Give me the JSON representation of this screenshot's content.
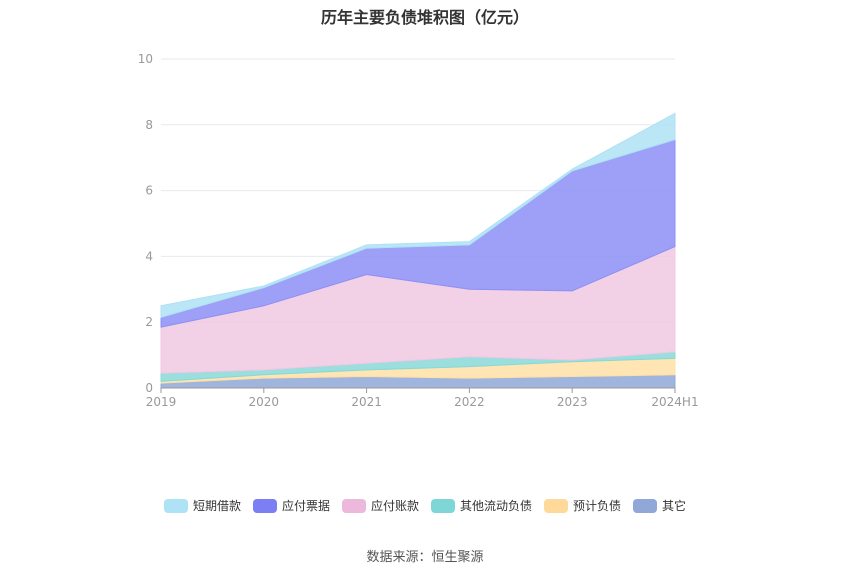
{
  "chart_data": {
    "type": "area",
    "stacked": true,
    "title": "历年主要负债堆积图（亿元）",
    "categories": [
      "2019",
      "2020",
      "2021",
      "2022",
      "2023",
      "2024H1"
    ],
    "ylim": [
      0,
      10
    ],
    "yticks": [
      "0",
      "2",
      "4",
      "6",
      "8",
      "10"
    ],
    "series": [
      {
        "name": "其它",
        "color": "#8fa8d8",
        "values": [
          0.15,
          0.3,
          0.35,
          0.3,
          0.35,
          0.4
        ]
      },
      {
        "name": "预计负债",
        "color": "#ffe0a6",
        "values": [
          0.05,
          0.1,
          0.2,
          0.35,
          0.45,
          0.5
        ]
      },
      {
        "name": "其他流动负债",
        "color": "#88d8d8",
        "values": [
          0.25,
          0.15,
          0.2,
          0.3,
          0.05,
          0.2
        ]
      },
      {
        "name": "应付账款",
        "color": "#f0c8e2",
        "values": [
          1.4,
          1.95,
          2.7,
          2.05,
          2.1,
          3.2
        ]
      },
      {
        "name": "应付票据",
        "color": "#8c8ff5",
        "values": [
          0.3,
          0.55,
          0.8,
          1.35,
          3.65,
          3.25
        ]
      },
      {
        "name": "短期借款",
        "color": "#aee2f5",
        "values": [
          0.35,
          0.05,
          0.1,
          0.1,
          0.05,
          0.8
        ]
      }
    ],
    "legend_order": [
      "短期借款",
      "应付票据",
      "应付账款",
      "其他流动负债",
      "预计负债",
      "其它"
    ]
  },
  "source": "数据来源：恒生聚源"
}
